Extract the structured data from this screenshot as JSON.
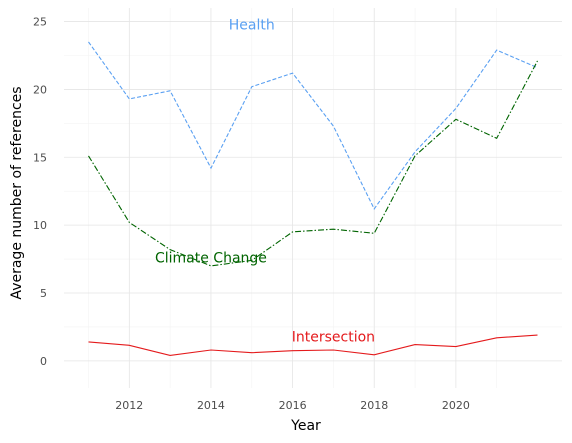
{
  "chart_data": {
    "type": "line",
    "xlabel": "Year",
    "ylabel": "Average number of references",
    "xlim": [
      2010.4,
      2022.6
    ],
    "ylim": [
      -2,
      26
    ],
    "x_ticks": [
      2012,
      2014,
      2016,
      2018,
      2020
    ],
    "y_ticks": [
      0,
      5,
      10,
      15,
      20,
      25
    ],
    "grid": true,
    "legend": "none (direct labels)",
    "x": [
      2011,
      2012,
      2013,
      2014,
      2015,
      2016,
      2017,
      2018,
      2019,
      2020,
      2021,
      2022
    ],
    "series": [
      {
        "name": "Health",
        "color": "#5aa0f2",
        "dash": "4,2",
        "values": [
          23.5,
          19.3,
          19.9,
          14.2,
          20.2,
          21.2,
          17.3,
          11.2,
          15.4,
          18.6,
          22.9,
          21.6
        ],
        "label_at": [
          2015.0,
          24.8
        ]
      },
      {
        "name": "Climate Change",
        "color": "#006400",
        "dash": "6,2,1.5,2",
        "values": [
          15.1,
          10.2,
          8.2,
          7.0,
          7.4,
          9.5,
          9.7,
          9.4,
          15.1,
          17.8,
          16.4,
          22.1
        ],
        "label_at": [
          2014.0,
          7.6
        ]
      },
      {
        "name": "Intersection",
        "color": "#e41a1c",
        "dash": "",
        "values": [
          1.4,
          1.15,
          0.4,
          0.8,
          0.6,
          0.75,
          0.8,
          0.45,
          1.2,
          1.05,
          1.7,
          1.9
        ],
        "label_at": [
          2017.0,
          1.8
        ]
      }
    ]
  }
}
